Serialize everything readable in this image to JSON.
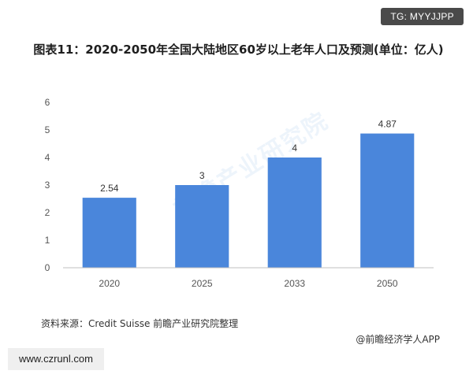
{
  "badge_top": "TG: MYYJJPP",
  "watermark": "前瞻产业研究院",
  "source": "资料来源：Credit Suisse 前瞻产业研究院整理",
  "credit": "@前瞻经济学人APP",
  "site_badge": "www.czrunl.com",
  "colors": {
    "bar": "#4a86db",
    "axis": "#bfbfbf",
    "text": "#555555"
  },
  "chart_data": {
    "type": "bar",
    "title": "图表11：2020-2050年全国大陆地区60岁以上老年人口及预测(单位：亿人)",
    "categories": [
      "2020",
      "2025",
      "2033",
      "2050"
    ],
    "values": [
      2.54,
      3,
      4,
      4.87
    ],
    "value_labels": [
      "2.54",
      "3",
      "4",
      "4.87"
    ],
    "ylim": [
      0,
      6
    ],
    "yticks": [
      0,
      1,
      2,
      3,
      4,
      5,
      6
    ],
    "xlabel": "",
    "ylabel": "",
    "grid": false,
    "legend": "none"
  }
}
